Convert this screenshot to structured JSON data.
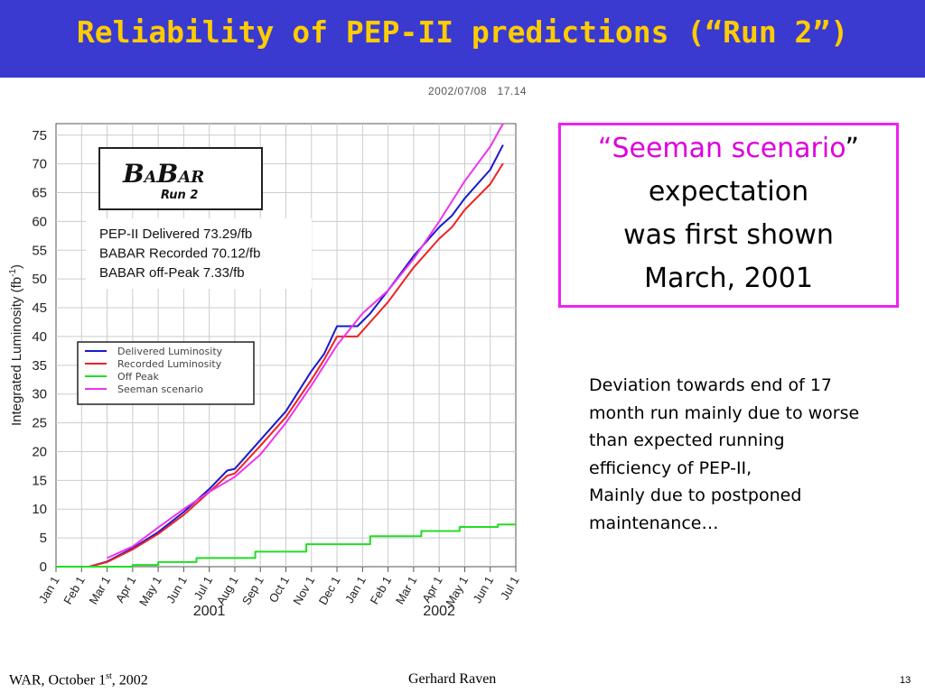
{
  "slide": {
    "title": "Reliability of PEP-II predictions (“Run 2”)",
    "timestamp": "2002/07/08   17.14",
    "box": {
      "quote_open": "“",
      "highlight": "Seeman scenario",
      "quote_close": "”",
      "line2": "expectation",
      "line3": "was first shown",
      "line4": "March, 2001"
    },
    "deviation_lines": [
      "Deviation towards end of 17",
      "month run mainly due to worse",
      "than expected running",
      "efficiency of PEP-II,",
      "Mainly due to postponed",
      "maintenance…"
    ],
    "footer": {
      "left_pre": "WAR, October 1",
      "left_sup": "st",
      "left_post": ", 2002",
      "center": "Gerhard Raven",
      "page": "13"
    }
  },
  "colors": {
    "title_bg": "#3a3ad0",
    "title_text": "#ffcc00",
    "box_border": "#ee22ee",
    "delivered": "#1a1acc",
    "recorded": "#ee2222",
    "offpeak": "#22dd22",
    "seeman": "#ee33ee"
  },
  "chart_data": {
    "type": "line",
    "ylabel_main": "Integrated Luminosity (fb",
    "ylabel_sup": "-1",
    "ylabel_end": ")",
    "ylim": [
      0,
      77
    ],
    "yticks": [
      0,
      5,
      10,
      15,
      20,
      25,
      30,
      35,
      40,
      45,
      50,
      55,
      60,
      65,
      70,
      75
    ],
    "xlim": [
      0,
      18
    ],
    "xticks": [
      "Jan 1",
      "Feb 1",
      "Mar 1",
      "Apr 1",
      "May 1",
      "Jun 1",
      "Jul 1",
      "Aug 1",
      "Sep 1",
      "Oct 1",
      "Nov 1",
      "Dec 1",
      "Jan 1",
      "Feb 1",
      "Mar 1",
      "Apr 1",
      "May 1",
      "Jun 1",
      "Jul 1"
    ],
    "year_labels": [
      {
        "label": "2001",
        "x": 6
      },
      {
        "label": "2002",
        "x": 15
      }
    ],
    "grid": true,
    "logo": {
      "text1": "B",
      "text2": "A",
      "text3": "B",
      "text4": "A",
      "text5": "R",
      "sub": "Run 2"
    },
    "summary": [
      "PEP-II Delivered  73.29/fb",
      "BABAR Recorded  70.12/fb",
      "BABAR off-Peak  7.33/fb"
    ],
    "series": [
      {
        "name": "Delivered Luminosity",
        "color": "#1a1acc",
        "x": [
          0,
          1.3,
          2,
          3,
          4,
          5,
          6,
          6.7,
          7,
          8,
          9,
          10,
          10.5,
          11,
          11.8,
          12.3,
          13,
          14,
          15,
          15.5,
          16,
          17,
          17.5
        ],
        "y": [
          0,
          0,
          0.9,
          3.2,
          6,
          9.5,
          13.5,
          16.7,
          17,
          22,
          27,
          34,
          37,
          41.8,
          41.8,
          44,
          48,
          54,
          59,
          61,
          64,
          69,
          73.3
        ]
      },
      {
        "name": "Recorded Luminosity",
        "color": "#ee2222",
        "x": [
          0,
          1.3,
          2,
          3,
          4,
          5,
          6,
          6.7,
          7,
          8,
          9,
          10,
          10.5,
          11,
          11.8,
          12.3,
          13,
          14,
          15,
          15.5,
          16,
          17,
          17.5
        ],
        "y": [
          0,
          0,
          0.8,
          3,
          5.7,
          9,
          13,
          15.8,
          16.2,
          21,
          26,
          32.5,
          36,
          40,
          40,
          42.5,
          46,
          52,
          57,
          59,
          62,
          66.5,
          70.1
        ]
      },
      {
        "name": "Off Peak",
        "color": "#22dd22",
        "x": [
          0,
          3,
          3,
          4,
          4,
          5.5,
          5.5,
          7.8,
          7.8,
          9.8,
          9.8,
          12.3,
          12.3,
          14.3,
          14.3,
          15.8,
          15.8,
          17.3,
          17.3,
          18
        ],
        "y": [
          0,
          0,
          0.3,
          0.3,
          0.8,
          0.8,
          1.5,
          1.5,
          2.6,
          2.6,
          3.9,
          3.9,
          5.3,
          5.3,
          6.2,
          6.2,
          6.9,
          6.9,
          7.33,
          7.33
        ]
      },
      {
        "name": "Seeman scenario",
        "color": "#ee33ee",
        "x": [
          2,
          3,
          4,
          5,
          6,
          7,
          8,
          9,
          10,
          11,
          12,
          13,
          14,
          15,
          16,
          17,
          17.5
        ],
        "y": [
          1.5,
          3.5,
          6.8,
          10,
          13,
          15.6,
          19.5,
          25,
          31.5,
          38.5,
          44,
          48,
          53.5,
          60,
          67,
          73,
          77
        ]
      }
    ]
  }
}
